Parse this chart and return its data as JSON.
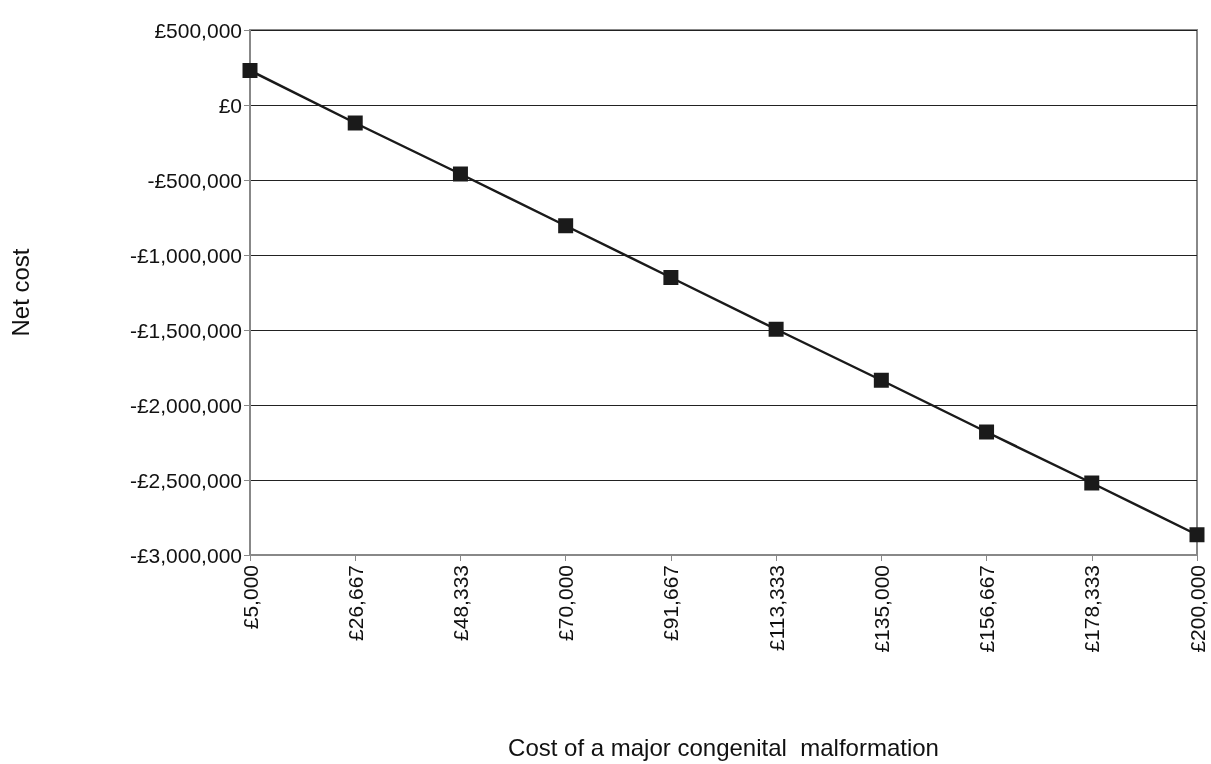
{
  "chart_data": {
    "type": "line",
    "xlabel": "Cost of a major congenital  malformation",
    "ylabel": "Net cost",
    "categories": [
      "£5,000",
      "£26,667",
      "£48,333",
      "£70,000",
      "£91,667",
      "£113,333",
      "£135,000",
      "£156,667",
      "£178,333",
      "£200,000"
    ],
    "series": [
      {
        "color": "#1a1a1a",
        "values": [
          230000,
          -120000,
          -460000,
          -805000,
          -1150000,
          -1495000,
          -1835000,
          -2180000,
          -2520000,
          -2865000
        ]
      }
    ],
    "ylim": [
      -3000000,
      500000
    ],
    "yticks": [
      {
        "value": -3000000,
        "label": "-£3,000,000"
      },
      {
        "value": -2500000,
        "label": "-£2,500,000"
      },
      {
        "value": -2000000,
        "label": "-£2,000,000"
      },
      {
        "value": -1500000,
        "label": "-£1,500,000"
      },
      {
        "value": -1000000,
        "label": "-£1,000,000"
      },
      {
        "value": -500000,
        "label": "-£500,000"
      },
      {
        "value": 0,
        "label": "£0"
      },
      {
        "value": 500000,
        "label": "£500,000"
      }
    ],
    "grid": "y",
    "marker": "square",
    "line_style": "solid"
  }
}
